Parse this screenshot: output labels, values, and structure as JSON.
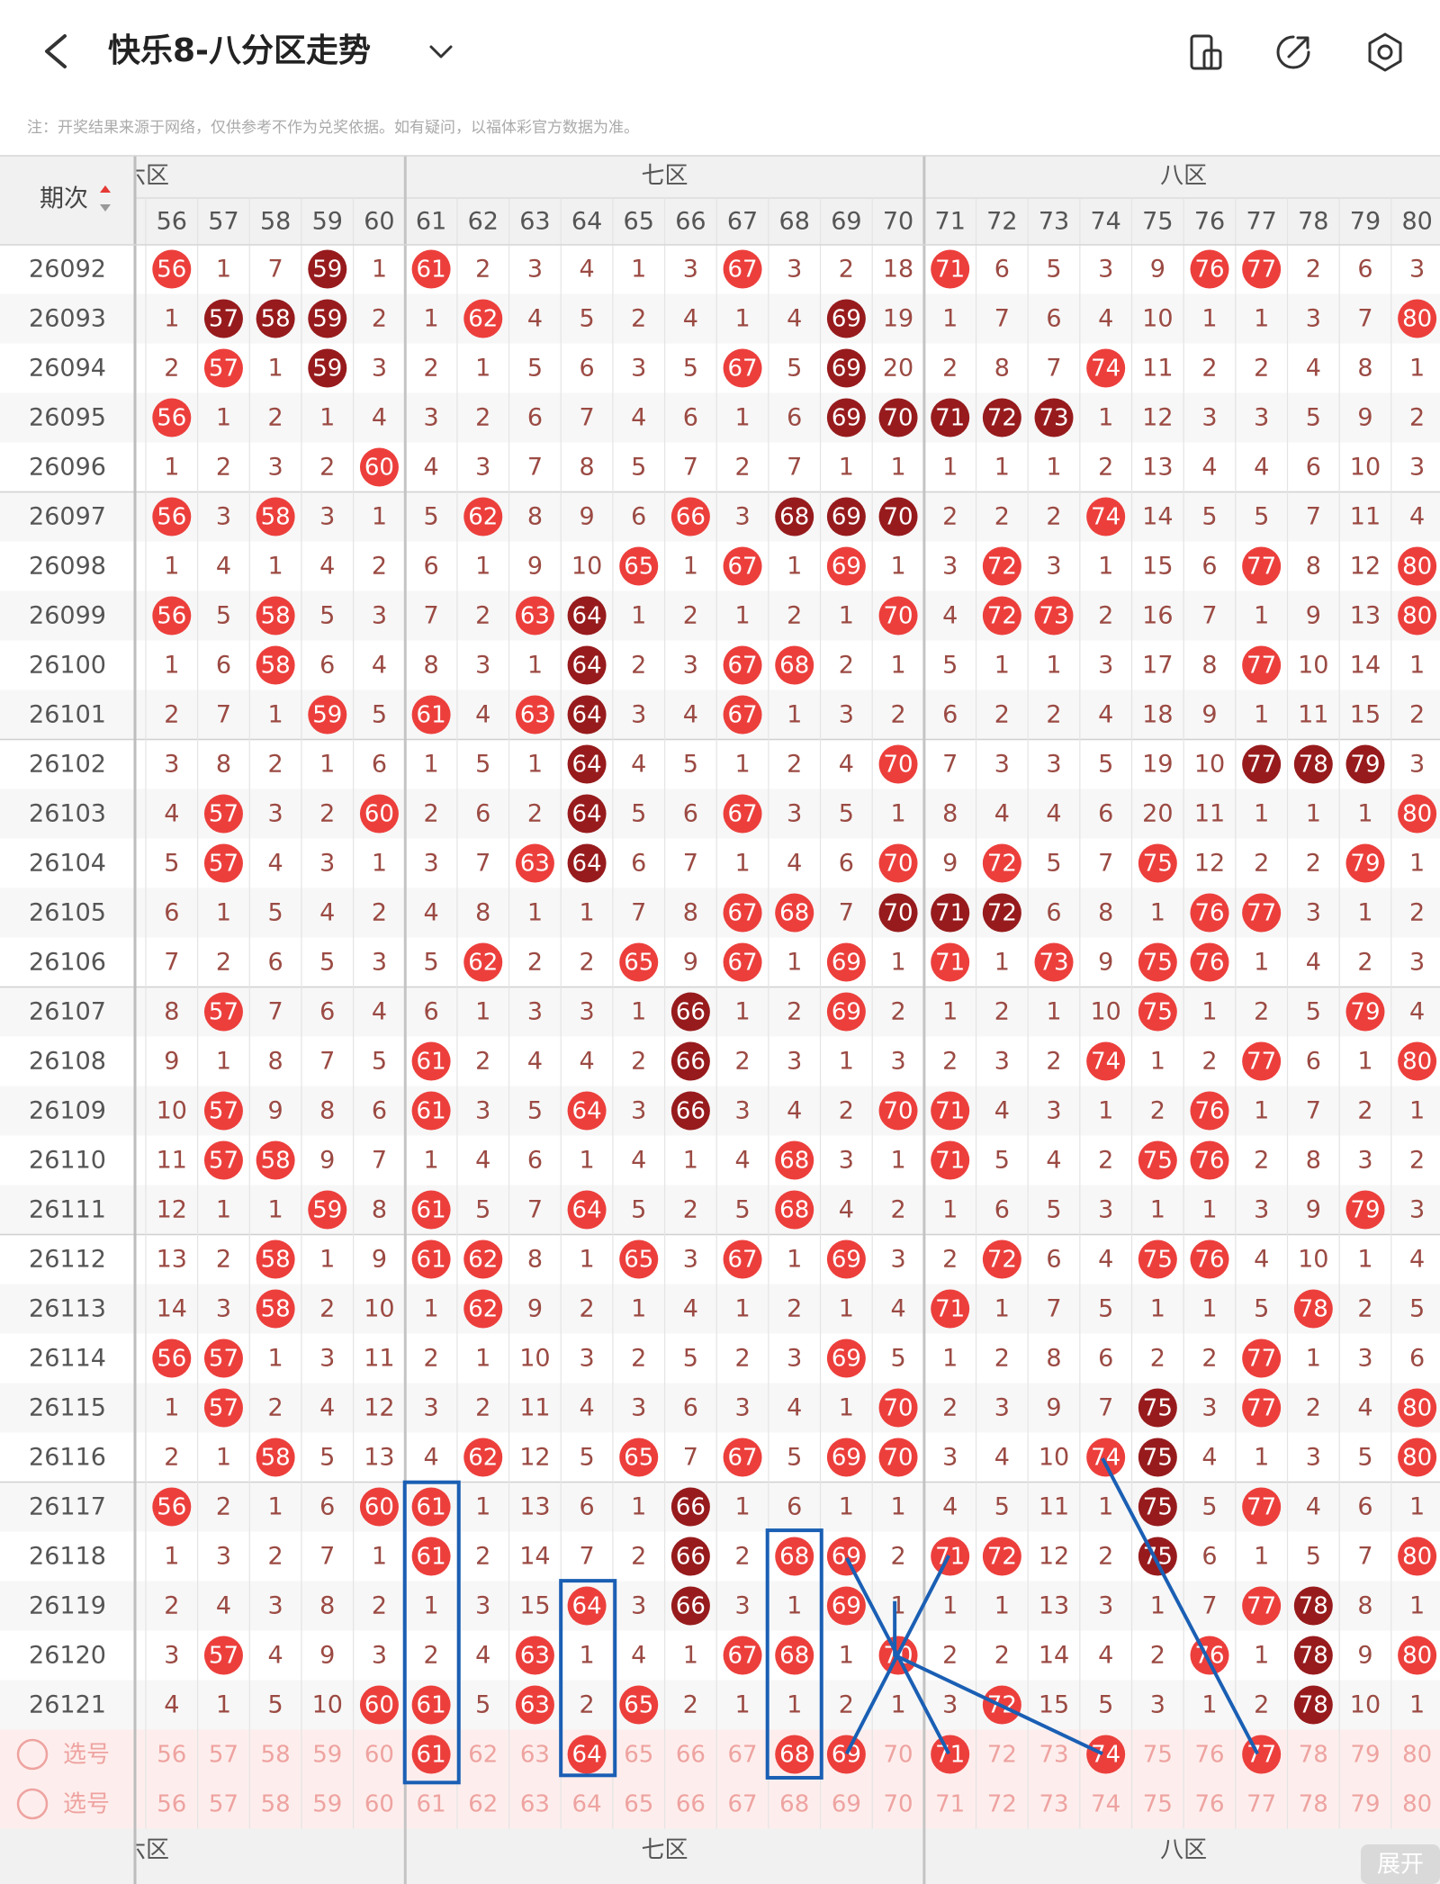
{
  "header": {
    "title": "快乐8-八分区走势",
    "note": "注：开奖结果来源于网络，仅供参考不作为兑奖依据。如有疑问，以福体彩官方数据为准。"
  },
  "table": {
    "period_label": "期次",
    "zones": [
      "六区",
      "七区",
      "八区"
    ],
    "columns": [
      56,
      57,
      58,
      59,
      60,
      61,
      62,
      63,
      64,
      65,
      66,
      67,
      68,
      69,
      70,
      71,
      72,
      73,
      74,
      75,
      76,
      77,
      78,
      79,
      80
    ],
    "rows": [
      {
        "period": "26092",
        "cells": [
          56,
          1,
          7,
          59,
          1,
          61,
          2,
          3,
          4,
          1,
          3,
          67,
          3,
          2,
          18,
          71,
          6,
          5,
          3,
          9,
          76,
          77,
          2,
          6,
          3
        ],
        "dark": [
          59
        ]
      },
      {
        "period": "26093",
        "cells": [
          1,
          57,
          58,
          59,
          2,
          1,
          62,
          4,
          5,
          2,
          4,
          1,
          4,
          69,
          19,
          1,
          7,
          6,
          4,
          10,
          1,
          1,
          3,
          7,
          80
        ],
        "dark": [
          57,
          58,
          59,
          69
        ]
      },
      {
        "period": "26094",
        "cells": [
          2,
          57,
          1,
          59,
          3,
          2,
          1,
          5,
          6,
          3,
          5,
          67,
          5,
          69,
          20,
          2,
          8,
          7,
          74,
          11,
          2,
          2,
          4,
          8,
          1
        ],
        "dark": [
          59,
          69
        ]
      },
      {
        "period": "26095",
        "cells": [
          56,
          1,
          2,
          1,
          4,
          3,
          2,
          6,
          7,
          4,
          6,
          1,
          6,
          69,
          70,
          71,
          72,
          73,
          1,
          12,
          3,
          3,
          5,
          9,
          2
        ],
        "dark": [
          69,
          70,
          71,
          72,
          73
        ]
      },
      {
        "period": "26096",
        "cells": [
          1,
          2,
          3,
          2,
          60,
          4,
          3,
          7,
          8,
          5,
          7,
          2,
          7,
          1,
          1,
          1,
          1,
          1,
          2,
          13,
          4,
          4,
          6,
          10,
          3
        ],
        "dark": []
      },
      {
        "period": "26097",
        "cells": [
          56,
          3,
          58,
          3,
          1,
          5,
          62,
          8,
          9,
          6,
          66,
          3,
          68,
          69,
          70,
          2,
          2,
          2,
          74,
          14,
          5,
          5,
          7,
          11,
          4
        ],
        "dark": [
          68,
          69,
          70
        ]
      },
      {
        "period": "26098",
        "cells": [
          1,
          4,
          1,
          4,
          2,
          6,
          1,
          9,
          10,
          65,
          1,
          67,
          1,
          69,
          1,
          3,
          72,
          3,
          1,
          15,
          6,
          77,
          8,
          12,
          80
        ],
        "dark": []
      },
      {
        "period": "26099",
        "cells": [
          56,
          5,
          58,
          5,
          3,
          7,
          2,
          63,
          64,
          1,
          2,
          1,
          2,
          1,
          70,
          4,
          72,
          73,
          2,
          16,
          7,
          1,
          9,
          13,
          80
        ],
        "dark": [
          64
        ]
      },
      {
        "period": "26100",
        "cells": [
          1,
          6,
          58,
          6,
          4,
          8,
          3,
          1,
          64,
          2,
          3,
          67,
          68,
          2,
          1,
          5,
          1,
          1,
          3,
          17,
          8,
          77,
          10,
          14,
          1
        ],
        "dark": [
          64
        ]
      },
      {
        "period": "26101",
        "cells": [
          2,
          7,
          1,
          59,
          5,
          61,
          4,
          63,
          64,
          3,
          4,
          67,
          1,
          3,
          2,
          6,
          2,
          2,
          4,
          18,
          9,
          1,
          11,
          15,
          2
        ],
        "dark": [
          64
        ]
      },
      {
        "period": "26102",
        "cells": [
          3,
          8,
          2,
          1,
          6,
          1,
          5,
          1,
          64,
          4,
          5,
          1,
          2,
          4,
          70,
          7,
          3,
          3,
          5,
          19,
          10,
          77,
          78,
          79,
          3
        ],
        "dark": [
          64,
          77,
          78,
          79
        ]
      },
      {
        "period": "26103",
        "cells": [
          4,
          57,
          3,
          2,
          60,
          2,
          6,
          2,
          64,
          5,
          6,
          67,
          3,
          5,
          1,
          8,
          4,
          4,
          6,
          20,
          11,
          1,
          1,
          1,
          80
        ],
        "dark": [
          64
        ]
      },
      {
        "period": "26104",
        "cells": [
          5,
          57,
          4,
          3,
          1,
          3,
          7,
          63,
          64,
          6,
          7,
          1,
          4,
          6,
          70,
          9,
          72,
          5,
          7,
          75,
          12,
          2,
          2,
          79,
          1
        ],
        "dark": [
          64
        ]
      },
      {
        "period": "26105",
        "cells": [
          6,
          1,
          5,
          4,
          2,
          4,
          8,
          1,
          1,
          7,
          8,
          67,
          68,
          7,
          70,
          71,
          72,
          6,
          8,
          1,
          76,
          77,
          3,
          1,
          2
        ],
        "dark": [
          70,
          71,
          72
        ]
      },
      {
        "period": "26106",
        "cells": [
          7,
          2,
          6,
          5,
          3,
          5,
          62,
          2,
          2,
          65,
          9,
          67,
          1,
          69,
          1,
          71,
          1,
          73,
          9,
          75,
          76,
          1,
          4,
          2,
          3
        ],
        "dark": []
      },
      {
        "period": "26107",
        "cells": [
          8,
          57,
          7,
          6,
          4,
          6,
          1,
          3,
          3,
          1,
          66,
          1,
          2,
          69,
          2,
          1,
          2,
          1,
          10,
          75,
          1,
          2,
          5,
          79,
          4
        ],
        "dark": [
          66
        ]
      },
      {
        "period": "26108",
        "cells": [
          9,
          1,
          8,
          7,
          5,
          61,
          2,
          4,
          4,
          2,
          66,
          2,
          3,
          1,
          3,
          2,
          3,
          2,
          74,
          1,
          2,
          77,
          6,
          1,
          80
        ],
        "dark": [
          66
        ]
      },
      {
        "period": "26109",
        "cells": [
          10,
          57,
          9,
          8,
          6,
          61,
          3,
          5,
          64,
          3,
          66,
          3,
          4,
          2,
          70,
          71,
          4,
          3,
          1,
          2,
          76,
          1,
          7,
          2,
          1
        ],
        "dark": [
          66
        ]
      },
      {
        "period": "26110",
        "cells": [
          11,
          57,
          58,
          9,
          7,
          1,
          4,
          6,
          1,
          4,
          1,
          4,
          68,
          3,
          1,
          71,
          5,
          4,
          2,
          75,
          76,
          2,
          8,
          3,
          2
        ],
        "dark": []
      },
      {
        "period": "26111",
        "cells": [
          12,
          1,
          1,
          59,
          8,
          61,
          5,
          7,
          64,
          5,
          2,
          5,
          68,
          4,
          2,
          1,
          6,
          5,
          3,
          1,
          1,
          3,
          9,
          79,
          3
        ],
        "dark": []
      },
      {
        "period": "26112",
        "cells": [
          13,
          2,
          58,
          1,
          9,
          61,
          62,
          8,
          1,
          65,
          3,
          67,
          1,
          69,
          3,
          2,
          72,
          6,
          4,
          75,
          76,
          4,
          10,
          1,
          4
        ],
        "dark": []
      },
      {
        "period": "26113",
        "cells": [
          14,
          3,
          58,
          2,
          10,
          1,
          62,
          9,
          2,
          1,
          4,
          1,
          2,
          1,
          4,
          71,
          1,
          7,
          5,
          1,
          1,
          5,
          78,
          2,
          5
        ],
        "dark": []
      },
      {
        "period": "26114",
        "cells": [
          56,
          57,
          1,
          3,
          11,
          2,
          1,
          10,
          3,
          2,
          5,
          2,
          3,
          69,
          5,
          1,
          2,
          8,
          6,
          2,
          2,
          77,
          1,
          3,
          6
        ],
        "dark": []
      },
      {
        "period": "26115",
        "cells": [
          1,
          57,
          2,
          4,
          12,
          3,
          2,
          11,
          4,
          3,
          6,
          3,
          4,
          1,
          70,
          2,
          3,
          9,
          7,
          75,
          3,
          77,
          2,
          4,
          80
        ],
        "dark": [
          75
        ]
      },
      {
        "period": "26116",
        "cells": [
          2,
          1,
          58,
          5,
          13,
          4,
          62,
          12,
          5,
          65,
          7,
          67,
          5,
          69,
          70,
          3,
          4,
          10,
          74,
          75,
          4,
          1,
          3,
          5,
          80
        ],
        "dark": [
          75
        ]
      },
      {
        "period": "26117",
        "cells": [
          56,
          2,
          1,
          6,
          60,
          61,
          1,
          13,
          6,
          1,
          66,
          1,
          6,
          1,
          1,
          4,
          5,
          11,
          1,
          75,
          5,
          77,
          4,
          6,
          1
        ],
        "dark": [
          66,
          75
        ]
      },
      {
        "period": "26118",
        "cells": [
          1,
          3,
          2,
          7,
          1,
          61,
          2,
          14,
          7,
          2,
          66,
          2,
          68,
          69,
          2,
          71,
          72,
          12,
          2,
          75,
          6,
          1,
          5,
          7,
          80
        ],
        "dark": [
          66,
          75
        ]
      },
      {
        "period": "26119",
        "cells": [
          2,
          4,
          3,
          8,
          2,
          1,
          3,
          15,
          64,
          3,
          66,
          3,
          1,
          69,
          1,
          1,
          1,
          13,
          3,
          1,
          7,
          77,
          78,
          8,
          1
        ],
        "dark": [
          66,
          78
        ]
      },
      {
        "period": "26120",
        "cells": [
          3,
          57,
          4,
          9,
          3,
          2,
          4,
          63,
          1,
          4,
          1,
          67,
          68,
          1,
          70,
          2,
          2,
          14,
          4,
          2,
          76,
          1,
          78,
          9,
          80
        ],
        "dark": [
          78
        ]
      },
      {
        "period": "26121",
        "cells": [
          4,
          1,
          5,
          10,
          60,
          61,
          5,
          63,
          2,
          65,
          2,
          1,
          1,
          2,
          1,
          3,
          72,
          15,
          5,
          3,
          1,
          2,
          78,
          10,
          1
        ],
        "dark": [
          78
        ]
      }
    ],
    "select_label": "选号",
    "picks": [
      61,
      64,
      68,
      69,
      71,
      74,
      77
    ],
    "expand": "展开"
  }
}
